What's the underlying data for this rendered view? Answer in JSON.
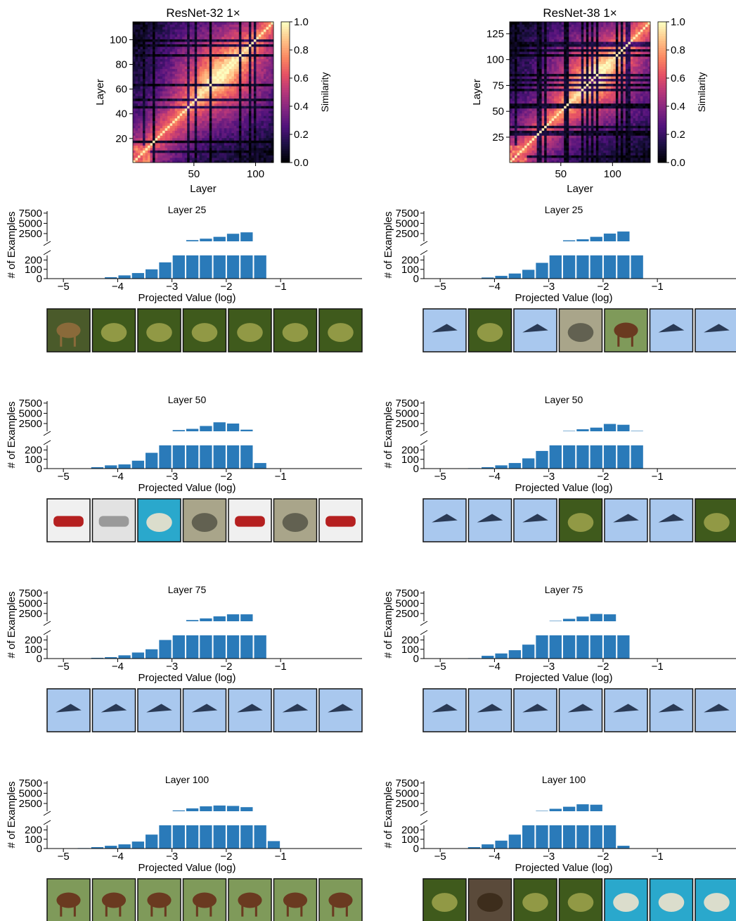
{
  "heatmap_colorbar": {
    "label": "Similarity",
    "ticks": [
      "0.0",
      "0.2",
      "0.4",
      "0.6",
      "0.8",
      "1.0"
    ]
  },
  "chart_data": [
    {
      "type": "heatmap",
      "title": "ResNet-32 1×",
      "xlabel": "Layer",
      "ylabel": "Layer",
      "n": 114,
      "xticks": [
        50,
        100
      ],
      "yticks": [
        20,
        40,
        60,
        80,
        100
      ],
      "value_range": [
        0,
        1
      ],
      "colorbar_label": "Similarity"
    },
    {
      "type": "heatmap",
      "title": "ResNet-38 1×",
      "xlabel": "Layer",
      "ylabel": "Layer",
      "n": 136,
      "xticks": [
        50,
        100
      ],
      "yticks": [
        25,
        50,
        75,
        100,
        125
      ],
      "value_range": [
        0,
        1
      ],
      "colorbar_label": "Similarity"
    },
    {
      "type": "bar",
      "model": "ResNet-32 1×",
      "title": "Layer 25",
      "xlabel": "Projected Value (log)",
      "ylabel": "# of Examples",
      "bin_start": -4.5,
      "bin_width": 0.25,
      "values": [
        3,
        15,
        35,
        60,
        100,
        175,
        500,
        900,
        1250,
        1700,
        2450,
        2800,
        280
      ],
      "xticks": [
        -5,
        -4,
        -3,
        -2,
        -1
      ],
      "yaxis_broken": true,
      "yticks_lower": [
        0,
        100,
        200
      ],
      "yticks_upper": [
        2500,
        5000,
        7500
      ]
    },
    {
      "type": "bar",
      "model": "ResNet-38 1×",
      "title": "Layer 25",
      "xlabel": "Projected Value (log)",
      "ylabel": "# of Examples",
      "bin_start": -4.5,
      "bin_width": 0.25,
      "values": [
        3,
        12,
        30,
        55,
        95,
        170,
        450,
        850,
        1100,
        1700,
        2500,
        3000,
        450
      ],
      "xticks": [
        -5,
        -4,
        -3,
        -2,
        -1
      ],
      "yaxis_broken": true,
      "yticks_lower": [
        0,
        100,
        200
      ],
      "yticks_upper": [
        2500,
        5000,
        7500
      ]
    },
    {
      "type": "bar",
      "model": "ResNet-32 1×",
      "title": "Layer 50",
      "xlabel": "Projected Value (log)",
      "ylabel": "# of Examples",
      "bin_start": -4.5,
      "bin_width": 0.25,
      "values": [
        15,
        35,
        45,
        85,
        170,
        500,
        900,
        1200,
        1900,
        2800,
        2500,
        1000,
        60
      ],
      "xticks": [
        -5,
        -4,
        -3,
        -2,
        -1
      ],
      "yaxis_broken": true,
      "yticks_lower": [
        0,
        100,
        200
      ],
      "yticks_upper": [
        2500,
        5000,
        7500
      ]
    },
    {
      "type": "bar",
      "model": "ResNet-38 1×",
      "title": "Layer 50",
      "xlabel": "Projected Value (log)",
      "ylabel": "# of Examples",
      "bin_start": -4.5,
      "bin_width": 0.25,
      "values": [
        5,
        15,
        35,
        60,
        110,
        190,
        500,
        700,
        1100,
        1500,
        2400,
        2200,
        700
      ],
      "xticks": [
        -5,
        -4,
        -3,
        -2,
        -1
      ],
      "yaxis_broken": true,
      "yticks_lower": [
        0,
        100,
        200
      ],
      "yticks_upper": [
        2500,
        5000,
        7500
      ]
    },
    {
      "type": "bar",
      "model": "ResNet-32 1×",
      "title": "Layer 75",
      "xlabel": "Projected Value (log)",
      "ylabel": "# of Examples",
      "bin_start": -4.75,
      "bin_width": 0.25,
      "values": [
        3,
        8,
        15,
        35,
        65,
        100,
        200,
        500,
        900,
        1300,
        1800,
        2300,
        2300,
        450
      ],
      "xticks": [
        -5,
        -4,
        -3,
        -2,
        -1
      ],
      "yaxis_broken": true,
      "yticks_lower": [
        0,
        100,
        200
      ],
      "yticks_upper": [
        2500,
        5000,
        7500
      ]
    },
    {
      "type": "bar",
      "model": "ResNet-38 1×",
      "title": "Layer 75",
      "xlabel": "Projected Value (log)",
      "ylabel": "# of Examples",
      "bin_start": -4.5,
      "bin_width": 0.25,
      "values": [
        5,
        30,
        55,
        90,
        150,
        500,
        700,
        1200,
        1750,
        2400,
        2300,
        450
      ],
      "xticks": [
        -5,
        -4,
        -3,
        -2,
        -1
      ],
      "yaxis_broken": true,
      "yticks_lower": [
        0,
        100,
        200
      ],
      "yticks_upper": [
        2500,
        5000,
        7500
      ]
    },
    {
      "type": "bar",
      "model": "ResNet-32 1×",
      "title": "Layer 100",
      "xlabel": "Projected Value (log)",
      "ylabel": "# of Examples",
      "bin_start": -4.75,
      "bin_width": 0.25,
      "values": [
        5,
        15,
        30,
        45,
        75,
        150,
        500,
        800,
        1300,
        1800,
        2000,
        1900,
        1600,
        450,
        80
      ],
      "xticks": [
        -5,
        -4,
        -3,
        -2,
        -1
      ],
      "yaxis_broken": true,
      "yticks_lower": [
        0,
        100,
        200
      ],
      "yticks_upper": [
        2500,
        5000,
        7500
      ]
    },
    {
      "type": "bar",
      "model": "ResNet-38 1×",
      "title": "Layer 100",
      "xlabel": "Projected Value (log)",
      "ylabel": "# of Examples",
      "bin_start": -4.5,
      "bin_width": 0.25,
      "values": [
        15,
        45,
        85,
        150,
        500,
        700,
        1200,
        1700,
        2300,
        2200,
        450,
        30
      ],
      "xticks": [
        -5,
        -4,
        -3,
        -2,
        -1
      ],
      "yaxis_broken": true,
      "yticks_lower": [
        0,
        100,
        200
      ],
      "yticks_upper": [
        2500,
        5000,
        7500
      ]
    }
  ],
  "example_images": [
    {
      "model": "ResNet-32 1×",
      "layer": "Layer 25",
      "items": [
        "deer",
        "frog",
        "frog",
        "frog",
        "frog",
        "frog",
        "frog"
      ]
    },
    {
      "model": "ResNet-38 1×",
      "layer": "Layer 25",
      "items": [
        "airplane",
        "frog",
        "airplane",
        "bird",
        "horse",
        "airplane",
        "airplane"
      ]
    },
    {
      "model": "ResNet-32 1×",
      "layer": "Layer 50",
      "items": [
        "automobile",
        "truck",
        "dog",
        "bird",
        "automobile",
        "bird",
        "automobile"
      ]
    },
    {
      "model": "ResNet-38 1×",
      "layer": "Layer 50",
      "items": [
        "airplane",
        "airplane",
        "airplane",
        "frog",
        "airplane",
        "airplane",
        "frog"
      ]
    },
    {
      "model": "ResNet-32 1×",
      "layer": "Layer 75",
      "items": [
        "airplane",
        "airplane",
        "airplane",
        "airplane",
        "airplane",
        "airplane",
        "airplane"
      ]
    },
    {
      "model": "ResNet-38 1×",
      "layer": "Layer 75",
      "items": [
        "airplane",
        "airplane",
        "airplane",
        "airplane",
        "airplane",
        "airplane",
        "airplane"
      ]
    },
    {
      "model": "ResNet-32 1×",
      "layer": "Layer 100",
      "items": [
        "horse",
        "horse",
        "horse",
        "horse",
        "horse",
        "horse",
        "horse"
      ]
    },
    {
      "model": "ResNet-38 1×",
      "layer": "Layer 100",
      "items": [
        "frog",
        "cat",
        "frog",
        "frog",
        "dog",
        "dog",
        "dog"
      ]
    }
  ],
  "colors": {
    "bar": "#2a7ab9",
    "image_border": "#111111",
    "axis": "#000000"
  }
}
